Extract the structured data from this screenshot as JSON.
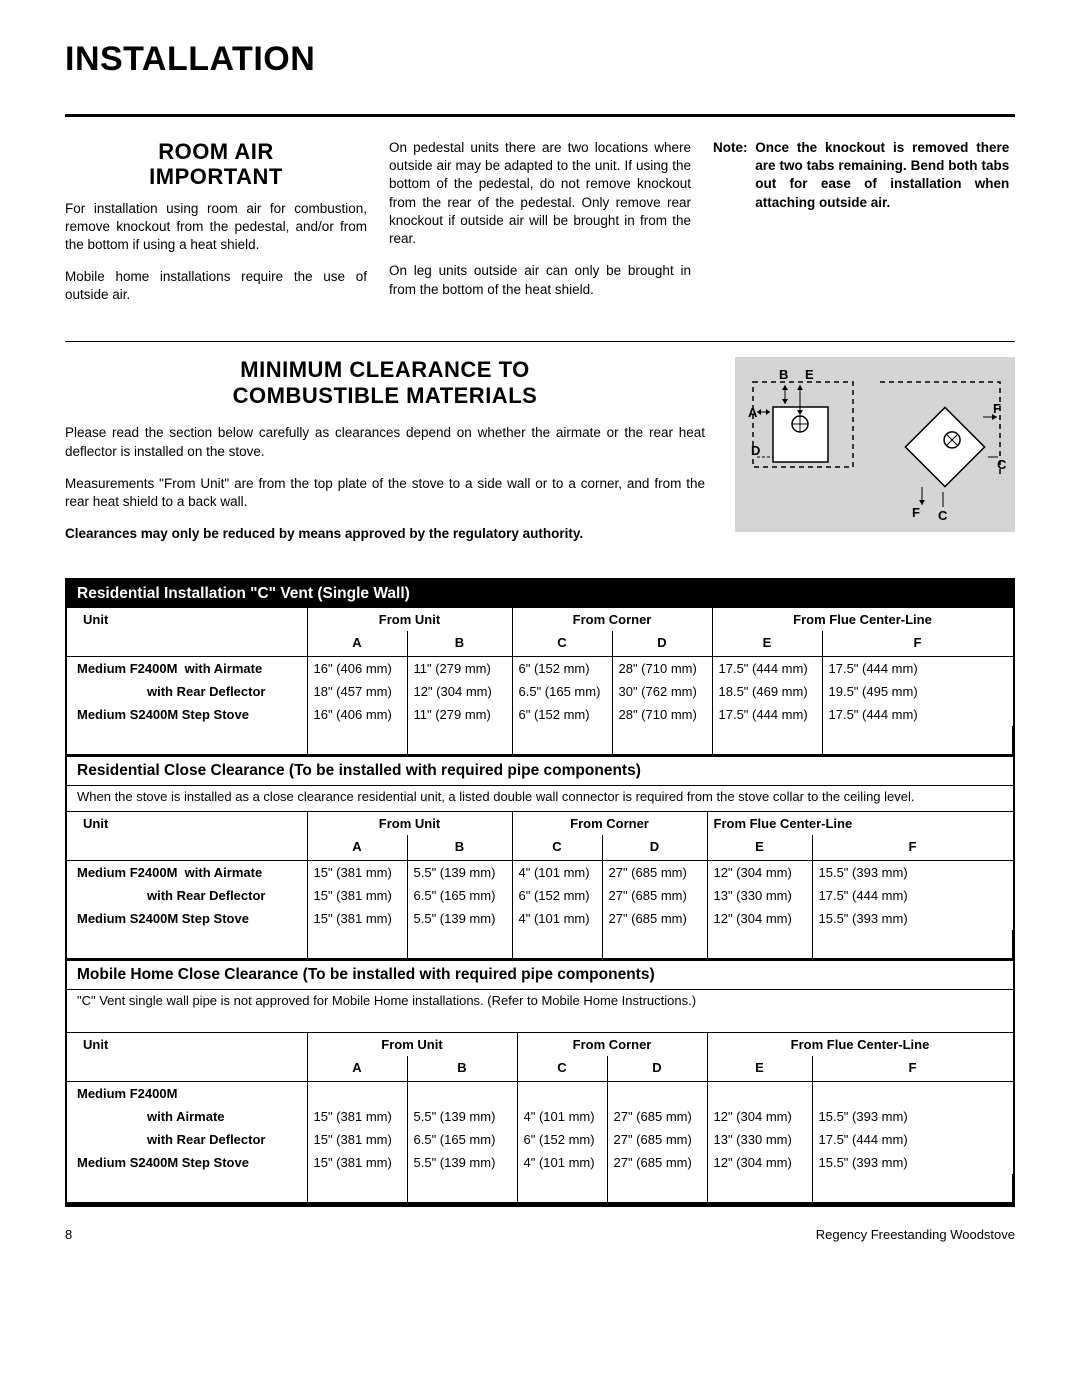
{
  "page_title": "INSTALLATION",
  "room_air": {
    "heading_l1": "ROOM AIR",
    "heading_l2": "IMPORTANT",
    "p1": "For installation using room air for combustion, remove knockout from the pedestal, and/or from the bottom if using a heat shield.",
    "p2": "Mobile home installations require the use of outside air.",
    "p3": "On pedestal units there are two locations where outside air may be adapted to the unit. If using the bottom of the pedestal, do not remove knockout from the rear of the pedestal. Only remove rear knockout if outside air will be brought in from the rear.",
    "p4": "On leg units outside air can only be brought in from the bottom of the heat shield.",
    "note_label": "Note:",
    "note_text": "Once the knockout is removed there are two tabs remaining. Bend both tabs out for ease of installation when attaching outside air."
  },
  "clearance": {
    "heading_l1": "MINIMUM CLEARANCE TO",
    "heading_l2": "COMBUSTIBLE MATERIALS",
    "p1": "Please read the section below carefully as clearances depend on whether the airmate or the rear heat deflector is installed on the stove.",
    "p2": "Measurements \"From Unit\" are from the top plate of the stove to a side wall or to a corner, and from the rear heat shield to a back wall.",
    "p3": "Clearances may only be reduced by means approved by the regulatory authority."
  },
  "diagram": {
    "labels": {
      "A": "A",
      "B": "B",
      "C": "C",
      "D": "D",
      "E": "E",
      "F": "F"
    }
  },
  "table_common": {
    "h_unit": "Unit",
    "h_from_unit": "From Unit",
    "h_from_corner": "From Corner",
    "h_from_flue": "From Flue Center-Line",
    "A": "A",
    "B": "B",
    "C": "C",
    "D": "D",
    "E": "E",
    "F": "F"
  },
  "table1": {
    "title": "Residential Installation \"C\" Vent  (Single Wall)",
    "rows": [
      {
        "unit_bold": "Medium F2400M",
        "unit_sub": "with Airmate",
        "A": "16\" (406 mm)",
        "B": "11\" (279 mm)",
        "C": "6\" (152 mm)",
        "D": "28\" (710 mm)",
        "E": "17.5\" (444 mm)",
        "F": "17.5\" (444 mm)"
      },
      {
        "unit_bold": "",
        "unit_sub": "with Rear Deflector",
        "A": "18\" (457 mm)",
        "B": "12\" (304 mm)",
        "C": "6.5\" (165 mm)",
        "D": "30\" (762 mm)",
        "E": "18.5\" (469 mm)",
        "F": "19.5\" (495 mm)"
      },
      {
        "unit_bold": "Medium S2400M Step Stove",
        "unit_sub": "",
        "A": "16\" (406 mm)",
        "B": "11\" (279 mm)",
        "C": "6\" (152 mm)",
        "D": "28\" (710 mm)",
        "E": "17.5\" (444 mm)",
        "F": "17.5\" (444 mm)"
      }
    ]
  },
  "table2": {
    "title": "Residential  Close Clearance (To be installed with required pipe components)",
    "subtitle": "When the stove is installed as a close clearance residential unit, a listed double wall connector is required from the stove collar to the ceiling level.",
    "rows": [
      {
        "unit_bold": "Medium F2400M",
        "unit_sub": "with Airmate",
        "A": "15\" (381 mm)",
        "B": "5.5\" (139 mm)",
        "C": "4\" (101 mm)",
        "D": "27\" (685 mm)",
        "E": "12\" (304 mm)",
        "F": "15.5\"  (393 mm)"
      },
      {
        "unit_bold": "",
        "unit_sub": "with Rear Deflector",
        "A": "15\" (381 mm)",
        "B": "6.5\" (165 mm)",
        "C": "6\" (152 mm)",
        "D": "27\" (685 mm)",
        "E": "13\" (330 mm)",
        "F": "17.5\" (444 mm)"
      },
      {
        "unit_bold": "Medium S2400M Step Stove",
        "unit_sub": "",
        "A": "15\" (381 mm)",
        "B": "5.5\" (139 mm)",
        "C": "4\" (101 mm)",
        "D": "27\" (685 mm)",
        "E": "12\" (304 mm)",
        "F": "15.5\" (393 mm)"
      }
    ]
  },
  "table3": {
    "title": "Mobile Home Close Clearance (To be installed with required pipe components)",
    "subtitle": "\"C\" Vent single wall pipe is not approved for Mobile Home installations. (Refer to Mobile Home Instructions.)",
    "rows": [
      {
        "unit_bold": "Medium F2400M",
        "unit_sub": ""
      },
      {
        "unit_bold": "",
        "unit_sub": "with Airmate",
        "A": "15\" (381 mm)",
        "B": "5.5\" (139 mm)",
        "C": "4\" (101 mm)",
        "D": "27\" (685 mm)",
        "E": "12\" (304 mm)",
        "F": "15.5\"  (393 mm)"
      },
      {
        "unit_bold": "",
        "unit_sub": "with Rear Deflector",
        "A": "15\" (381 mm)",
        "B": "6.5\" (165 mm)",
        "C": "6\" (152 mm)",
        "D": "27\" (685 mm)",
        "E": "13\" (330 mm)",
        "F": "17.5\" (444 mm)"
      },
      {
        "unit_bold": "Medium S2400M Step Stove",
        "unit_sub": "",
        "A": "15\" (381 mm)",
        "B": "5.5\" (139 mm)",
        "C": "4\" (101 mm)",
        "D": "27\" (685 mm)",
        "E": "12\" (304 mm)",
        "F": "15.5\" (393 mm)"
      }
    ]
  },
  "footer": {
    "page": "8",
    "doc": "Regency Freestanding Woodstove"
  }
}
